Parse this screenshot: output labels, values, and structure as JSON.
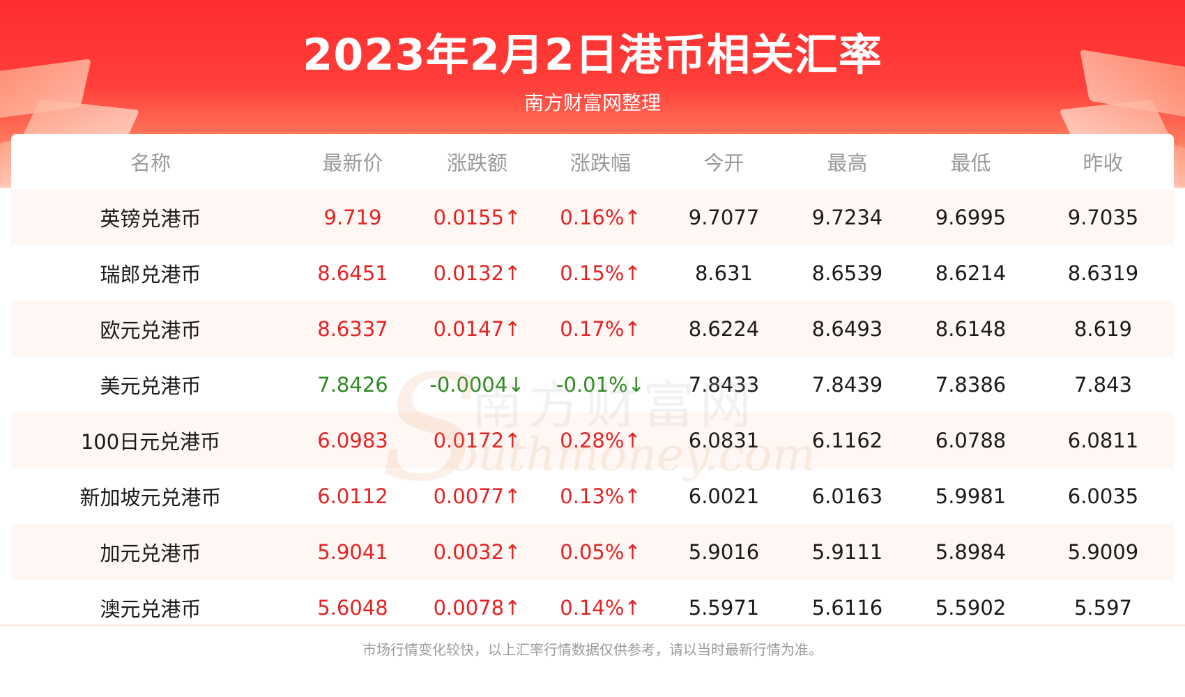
{
  "title": "2023年2月2日港币相关汇率",
  "subtitle": "南方财富网整理",
  "watermark": {
    "cn": "南方财富网",
    "en": "outhmoney.com",
    "s": "S"
  },
  "colors": {
    "up": "#e62222",
    "down": "#2b8a1e",
    "header": "#fe2d2d"
  },
  "table": {
    "headers": [
      "名称",
      "最新价",
      "涨跌额",
      "涨跌幅",
      "今开",
      "最高",
      "最低",
      "昨收"
    ],
    "rows": [
      {
        "direction": "up",
        "cells": [
          "英镑兑港币",
          "9.719",
          "0.0155↑",
          "0.16%↑",
          "9.7077",
          "9.7234",
          "9.6995",
          "9.7035"
        ]
      },
      {
        "direction": "up",
        "cells": [
          "瑞郎兑港币",
          "8.6451",
          "0.0132↑",
          "0.15%↑",
          "8.631",
          "8.6539",
          "8.6214",
          "8.6319"
        ]
      },
      {
        "direction": "up",
        "cells": [
          "欧元兑港币",
          "8.6337",
          "0.0147↑",
          "0.17%↑",
          "8.6224",
          "8.6493",
          "8.6148",
          "8.619"
        ]
      },
      {
        "direction": "down",
        "cells": [
          "美元兑港币",
          "7.8426",
          "-0.0004↓",
          "-0.01%↓",
          "7.8433",
          "7.8439",
          "7.8386",
          "7.843"
        ]
      },
      {
        "direction": "up",
        "cells": [
          "100日元兑港币",
          "6.0983",
          "0.0172↑",
          "0.28%↑",
          "6.0831",
          "6.1162",
          "6.0788",
          "6.0811"
        ]
      },
      {
        "direction": "up",
        "cells": [
          "新加坡元兑港币",
          "6.0112",
          "0.0077↑",
          "0.13%↑",
          "6.0021",
          "6.0163",
          "5.9981",
          "6.0035"
        ]
      },
      {
        "direction": "up",
        "cells": [
          "加元兑港币",
          "5.9041",
          "0.0032↑",
          "0.05%↑",
          "5.9016",
          "5.9111",
          "5.8984",
          "5.9009"
        ]
      },
      {
        "direction": "up",
        "cells": [
          "澳元兑港币",
          "5.6048",
          "0.0078↑",
          "0.14%↑",
          "5.5971",
          "5.6116",
          "5.5902",
          "5.597"
        ]
      }
    ]
  },
  "footnote": "市场行情变化较快，以上汇率行情数据仅供参考，请以当时最新行情为准。"
}
